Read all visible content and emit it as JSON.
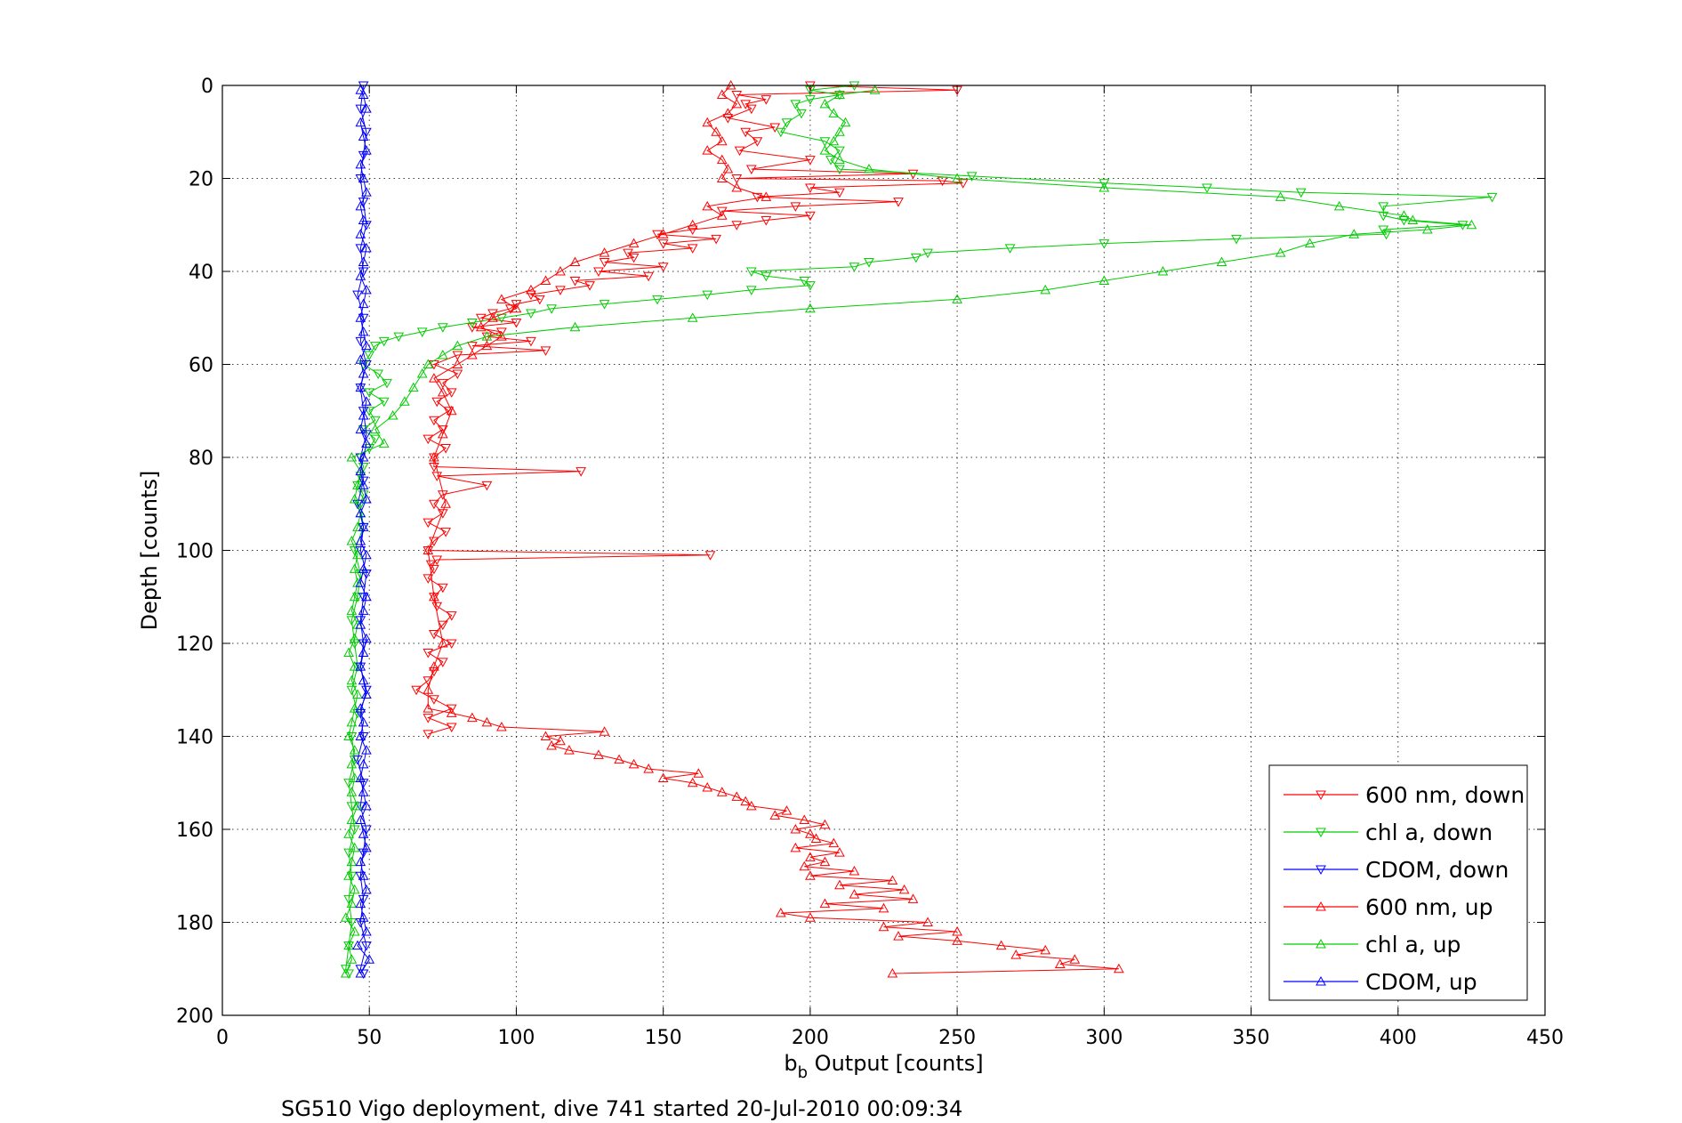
{
  "chart_data": {
    "type": "line",
    "xlabel_main": "b",
    "xlabel_sub": "b",
    "xlabel_rest": " Output [counts]",
    "ylabel": "Depth [counts]",
    "caption": "SG510 Vigo deployment, dive 741 started 20-Jul-2010 00:09:34",
    "xlim": [
      0,
      450
    ],
    "ylim": [
      0,
      200
    ],
    "y_reversed": true,
    "grid": true,
    "legend_position": "bottom-right",
    "x_ticks": [
      0,
      50,
      100,
      150,
      200,
      250,
      300,
      350,
      400,
      450
    ],
    "y_ticks": [
      0,
      20,
      40,
      60,
      80,
      100,
      120,
      140,
      160,
      180,
      200
    ],
    "series": [
      {
        "name": "600 nm, down",
        "color": "#ff0000",
        "marker": "triangle-down",
        "depth": [
          0,
          1,
          2,
          3,
          4,
          5,
          7,
          9,
          10,
          12,
          14,
          16,
          18,
          19,
          20,
          20.5,
          21,
          22,
          23,
          24,
          25,
          26,
          27,
          28,
          29,
          30,
          31,
          32,
          33,
          34,
          35,
          36,
          37,
          38,
          39,
          40,
          41,
          42,
          43,
          44,
          45,
          46,
          47,
          48,
          49,
          50,
          51,
          52,
          53,
          54,
          55,
          56,
          57,
          58,
          60,
          62,
          64,
          66,
          68,
          70,
          72,
          74,
          76,
          78,
          80,
          82,
          83,
          84,
          86,
          88,
          90,
          92,
          94,
          96,
          98,
          100,
          101,
          102,
          103,
          104,
          106,
          108,
          110,
          112,
          114,
          116,
          118,
          120,
          122,
          124,
          126,
          128,
          130,
          132,
          134,
          136,
          138,
          139.5
        ],
        "x": [
          200,
          250,
          175,
          185,
          178,
          180,
          172,
          188,
          178,
          182,
          176,
          200,
          180,
          235,
          175,
          245,
          252,
          200,
          210,
          182,
          230,
          195,
          170,
          200,
          185,
          175,
          160,
          148,
          168,
          150,
          160,
          138,
          140,
          130,
          150,
          128,
          145,
          120,
          125,
          115,
          105,
          108,
          100,
          98,
          92,
          88,
          100,
          85,
          95,
          90,
          105,
          85,
          110,
          80,
          72,
          80,
          75,
          78,
          73,
          77,
          72,
          75,
          70,
          76,
          72,
          72,
          122,
          73,
          90,
          75,
          72,
          75,
          70,
          76,
          72,
          70,
          166,
          73,
          71,
          72,
          70,
          75,
          72,
          73,
          78,
          75,
          72,
          78,
          70,
          75,
          72,
          70,
          66,
          72,
          78,
          70,
          78,
          70
        ]
      },
      {
        "name": "chl a, down",
        "color": "#00cc00",
        "marker": "triangle-down",
        "depth": [
          0,
          1,
          2,
          3,
          4,
          6,
          8,
          10,
          12,
          14,
          16,
          18,
          19.5,
          21,
          22,
          23,
          24,
          26,
          28,
          29,
          30,
          31,
          32,
          33,
          34,
          35,
          36,
          37,
          38,
          39,
          40,
          41,
          42,
          43,
          44,
          45,
          46,
          47,
          48,
          49,
          50,
          51,
          52,
          53,
          54,
          55,
          56,
          58,
          60,
          62,
          64,
          66,
          68,
          70,
          72,
          74,
          76,
          78,
          80,
          82,
          84,
          86,
          88,
          90,
          95,
          100,
          105,
          110,
          115,
          120,
          125,
          130,
          135,
          140,
          145,
          150,
          155,
          160,
          165,
          170,
          175,
          180,
          185,
          190,
          191
        ],
        "x": [
          215,
          200,
          210,
          200,
          195,
          197,
          192,
          190,
          205,
          210,
          207,
          210,
          255,
          300,
          335,
          367,
          432,
          395,
          395,
          402,
          422,
          395,
          396,
          345,
          300,
          268,
          240,
          236,
          220,
          215,
          180,
          185,
          198,
          200,
          180,
          165,
          148,
          130,
          112,
          105,
          95,
          85,
          75,
          68,
          60,
          55,
          52,
          50,
          48,
          53,
          56,
          50,
          55,
          50,
          52,
          48,
          52,
          50,
          47,
          48,
          47,
          46,
          48,
          47,
          48,
          45,
          47,
          46,
          44,
          45,
          46,
          44,
          46,
          44,
          45,
          43,
          44,
          45,
          43,
          44,
          43,
          44,
          43,
          42,
          43
        ]
      },
      {
        "name": "CDOM, down",
        "color": "#0000ff",
        "marker": "triangle-down",
        "depth": [
          0,
          5,
          10,
          15,
          20,
          25,
          30,
          35,
          40,
          45,
          50,
          55,
          60,
          65,
          70,
          75,
          80,
          85,
          90,
          95,
          100,
          105,
          110,
          115,
          120,
          125,
          130,
          135,
          140,
          145,
          150,
          155,
          160,
          165,
          170,
          175,
          180,
          185,
          190,
          191
        ],
        "x": [
          48,
          47,
          49,
          48,
          47,
          48,
          49,
          47,
          48,
          46,
          48,
          47,
          49,
          47,
          48,
          49,
          47,
          48,
          46,
          48,
          47,
          49,
          48,
          47,
          48,
          47,
          49,
          47,
          48,
          46,
          48,
          47,
          49,
          48,
          47,
          48,
          47,
          49,
          47,
          48
        ]
      },
      {
        "name": "600 nm, up",
        "color": "#ff0000",
        "marker": "triangle-up",
        "depth": [
          191,
          190,
          189,
          188,
          187,
          186,
          185,
          184,
          183,
          182,
          181,
          180,
          179,
          178,
          177,
          176,
          175,
          174,
          173,
          172,
          171,
          170,
          169,
          168,
          167,
          166,
          165,
          164,
          163,
          162,
          161,
          160,
          159,
          158,
          157,
          156,
          155,
          154,
          153,
          152,
          151,
          150,
          149,
          148,
          147,
          146,
          145,
          144,
          143,
          142,
          141,
          140,
          139,
          138,
          137,
          136,
          135,
          134,
          130,
          125,
          120,
          110,
          100,
          90,
          80,
          75,
          70,
          66,
          63,
          60,
          58,
          56,
          54,
          52,
          50,
          48,
          46,
          44,
          42,
          40,
          38,
          36,
          34,
          32,
          30,
          28,
          26,
          24,
          22,
          20,
          18,
          16,
          14,
          12,
          10,
          8,
          6,
          4,
          2,
          0
        ],
        "x": [
          228,
          305,
          285,
          290,
          270,
          280,
          265,
          250,
          230,
          250,
          225,
          240,
          200,
          190,
          225,
          205,
          235,
          215,
          232,
          210,
          228,
          200,
          215,
          198,
          205,
          200,
          210,
          195,
          208,
          202,
          200,
          195,
          205,
          198,
          188,
          192,
          180,
          178,
          175,
          170,
          165,
          160,
          150,
          162,
          145,
          140,
          135,
          128,
          118,
          112,
          115,
          110,
          130,
          95,
          90,
          85,
          78,
          70,
          70,
          72,
          75,
          72,
          70,
          76,
          72,
          75,
          78,
          75,
          72,
          80,
          85,
          90,
          95,
          88,
          92,
          100,
          95,
          105,
          110,
          115,
          120,
          130,
          140,
          150,
          160,
          170,
          165,
          185,
          175,
          170,
          172,
          170,
          165,
          170,
          168,
          165,
          172,
          175,
          170,
          173
        ]
      },
      {
        "name": "chl a, up",
        "color": "#00cc00",
        "marker": "triangle-up",
        "depth": [
          191,
          188,
          185,
          182,
          179,
          176,
          173,
          170,
          167,
          164,
          161,
          158,
          155,
          152,
          149,
          146,
          143,
          140,
          137,
          134,
          131,
          128,
          125,
          122,
          119,
          116,
          113,
          110,
          107,
          104,
          101,
          98,
          95,
          92,
          89,
          86,
          83,
          80,
          77,
          74,
          71,
          68,
          65,
          62,
          60,
          58,
          56,
          54,
          52,
          50,
          48,
          46,
          44,
          42,
          40,
          38,
          36,
          34,
          32,
          31,
          30,
          29,
          28,
          26,
          24,
          22,
          20,
          18,
          16,
          14,
          12,
          10,
          8,
          6,
          4,
          2,
          1
        ],
        "x": [
          42,
          44,
          43,
          45,
          42,
          44,
          45,
          43,
          44,
          45,
          43,
          44,
          46,
          44,
          45,
          44,
          45,
          43,
          44,
          45,
          46,
          44,
          45,
          43,
          45,
          46,
          44,
          45,
          46,
          45,
          46,
          44,
          46,
          47,
          45,
          46,
          47,
          44,
          55,
          52,
          58,
          62,
          65,
          68,
          70,
          75,
          80,
          90,
          120,
          160,
          200,
          250,
          280,
          300,
          320,
          340,
          360,
          370,
          385,
          410,
          425,
          405,
          402,
          380,
          360,
          300,
          250,
          220,
          210,
          205,
          208,
          210,
          212,
          208,
          205,
          210,
          222
        ]
      },
      {
        "name": "CDOM, up",
        "color": "#0000ff",
        "marker": "triangle-up",
        "depth": [
          191,
          188,
          185,
          182,
          179,
          176,
          173,
          170,
          167,
          164,
          161,
          158,
          155,
          152,
          149,
          146,
          143,
          140,
          137,
          134,
          131,
          128,
          125,
          122,
          119,
          116,
          113,
          110,
          107,
          104,
          101,
          98,
          95,
          92,
          89,
          86,
          83,
          80,
          77,
          74,
          71,
          68,
          65,
          62,
          59,
          56,
          53,
          50,
          47,
          44,
          41,
          38,
          35,
          32,
          29,
          26,
          23,
          20,
          17,
          14,
          11,
          8,
          5,
          2,
          1
        ],
        "x": [
          47,
          50,
          46,
          49,
          48,
          47,
          49,
          48,
          47,
          49,
          48,
          47,
          49,
          48,
          47,
          48,
          49,
          47,
          48,
          47,
          49,
          48,
          47,
          48,
          49,
          47,
          48,
          49,
          47,
          48,
          49,
          47,
          48,
          47,
          49,
          48,
          47,
          48,
          49,
          47,
          48,
          49,
          47,
          48,
          47,
          49,
          48,
          47,
          48,
          49,
          47,
          48,
          49,
          47,
          48,
          47,
          49,
          48,
          47,
          49,
          48,
          47,
          49,
          48,
          47
        ]
      }
    ]
  }
}
